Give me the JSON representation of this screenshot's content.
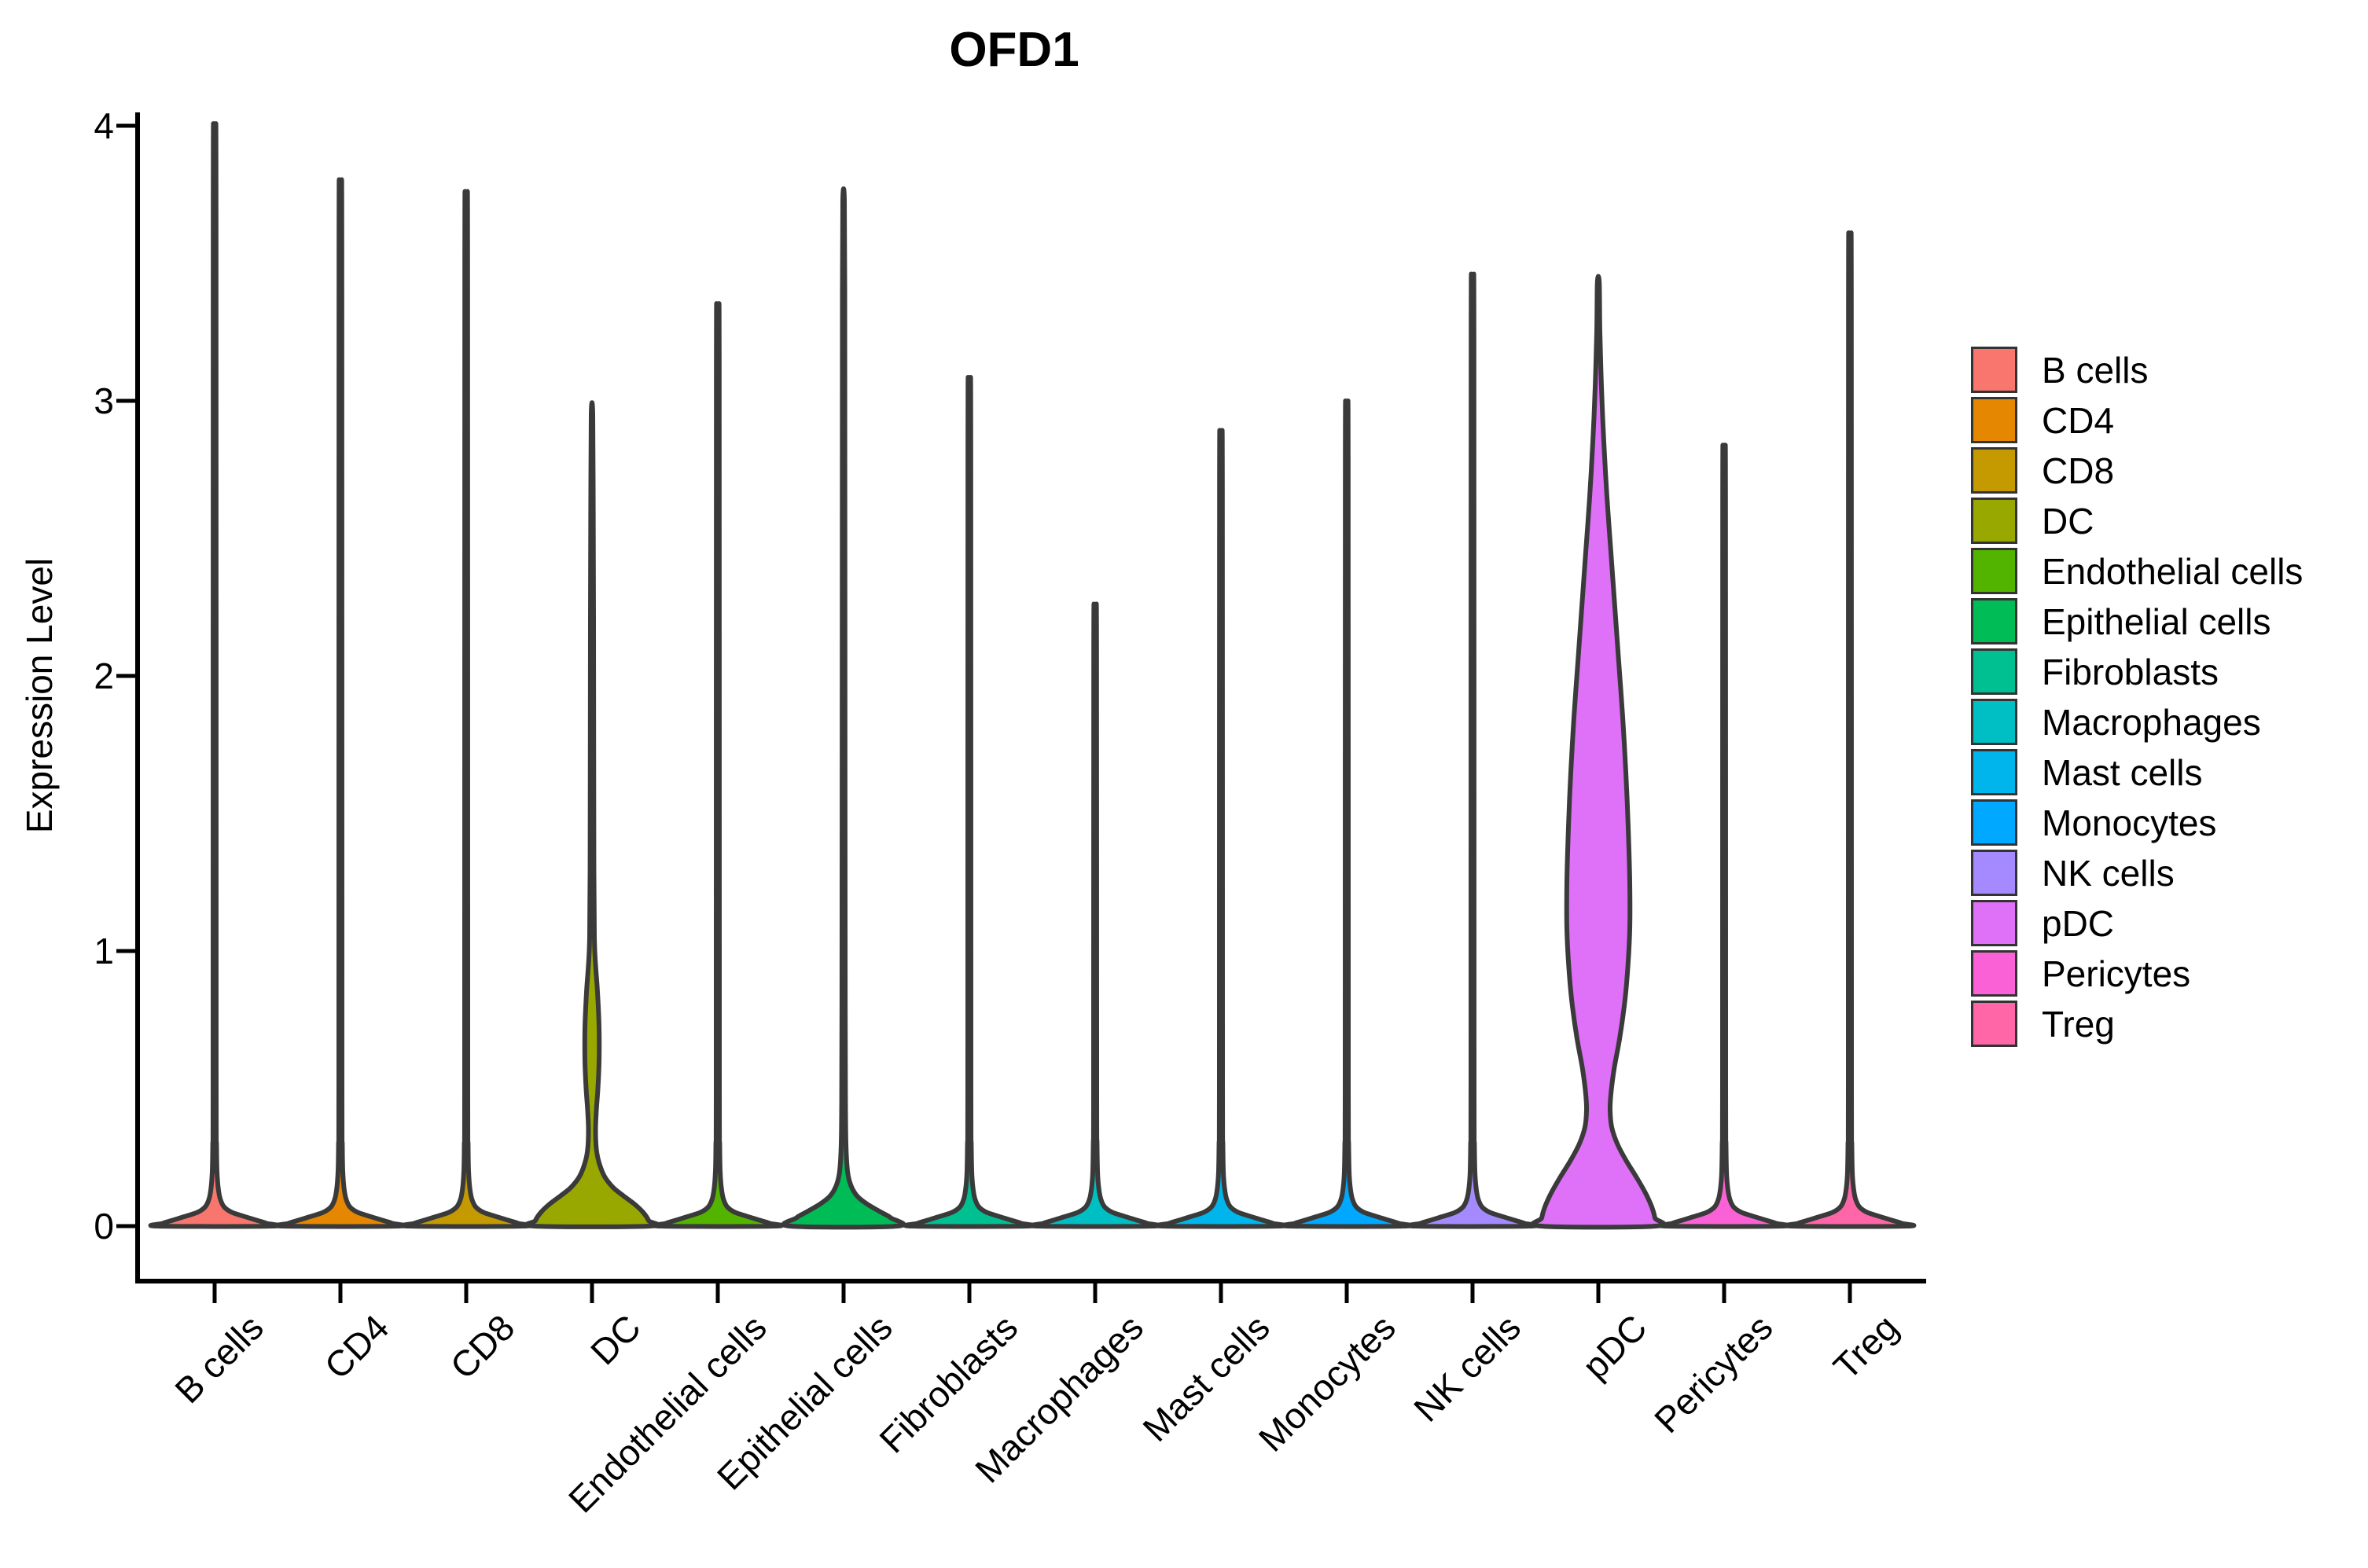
{
  "chart_data": {
    "type": "violin",
    "title": "OFD1",
    "ylabel": "Expression Level",
    "xlabel": "",
    "ylim": [
      0,
      4
    ],
    "yticks": [
      "0",
      "1",
      "2",
      "3",
      "4"
    ],
    "grid": false,
    "legend_position": "right",
    "categories": [
      "B cells",
      "CD4",
      "CD8",
      "DC",
      "Endothelial cells",
      "Epithelial cells",
      "Fibroblasts",
      "Macrophages",
      "Mast cells",
      "Monocytes",
      "NK cells",
      "pDC",
      "Pericytes",
      "Treg"
    ],
    "violins": [
      {
        "label": "B cells",
        "color": "#F8766D",
        "max_expression": 3.85,
        "profile": [
          [
            3.85,
            1
          ],
          [
            3.73,
            1.8
          ],
          [
            0.5,
            2
          ],
          [
            0.3,
            2.4
          ],
          [
            0.2,
            3
          ],
          [
            0.14,
            4.5
          ],
          [
            0.1,
            7
          ],
          [
            0.07,
            12
          ],
          [
            0.05,
            22
          ],
          [
            0.035,
            38
          ],
          [
            0.02,
            55
          ],
          [
            0.01,
            66
          ],
          [
            0,
            72
          ]
        ]
      },
      {
        "label": "CD4",
        "color": "#E58700",
        "max_expression": 3.66,
        "profile": [
          [
            3.66,
            1
          ],
          [
            3.54,
            1.8
          ],
          [
            0.5,
            2
          ],
          [
            0.3,
            2.4
          ],
          [
            0.2,
            3
          ],
          [
            0.14,
            4.5
          ],
          [
            0.1,
            7
          ],
          [
            0.07,
            12
          ],
          [
            0.05,
            22
          ],
          [
            0.035,
            38
          ],
          [
            0.02,
            55
          ],
          [
            0.01,
            66
          ],
          [
            0,
            72
          ]
        ]
      },
      {
        "label": "CD8",
        "color": "#C49A00",
        "max_expression": 3.62,
        "profile": [
          [
            3.62,
            1
          ],
          [
            3.5,
            1.8
          ],
          [
            0.5,
            2
          ],
          [
            0.3,
            2.4
          ],
          [
            0.2,
            3
          ],
          [
            0.14,
            4.5
          ],
          [
            0.1,
            7
          ],
          [
            0.07,
            12
          ],
          [
            0.05,
            22
          ],
          [
            0.035,
            38
          ],
          [
            0.02,
            55
          ],
          [
            0.01,
            66
          ],
          [
            0,
            72
          ]
        ]
      },
      {
        "label": "DC",
        "color": "#99A800",
        "max_expression": 2.95,
        "profile": [
          [
            2.95,
            1
          ],
          [
            2.6,
            1.6
          ],
          [
            2.2,
            2
          ],
          [
            1.7,
            2.2
          ],
          [
            1.3,
            2.4
          ],
          [
            1.05,
            3
          ],
          [
            0.95,
            4.5
          ],
          [
            0.85,
            7
          ],
          [
            0.72,
            9
          ],
          [
            0.6,
            9
          ],
          [
            0.5,
            7.5
          ],
          [
            0.42,
            5.5
          ],
          [
            0.35,
            4.5
          ],
          [
            0.28,
            5.5
          ],
          [
            0.23,
            9
          ],
          [
            0.18,
            16
          ],
          [
            0.14,
            27
          ],
          [
            0.11,
            40
          ],
          [
            0.08,
            54
          ],
          [
            0.05,
            65
          ],
          [
            0.02,
            72
          ],
          [
            0,
            73
          ]
        ]
      },
      {
        "label": "Endothelial cells",
        "color": "#53B400",
        "max_expression": 3.24,
        "profile": [
          [
            3.24,
            1
          ],
          [
            3.12,
            1.8
          ],
          [
            0.5,
            2
          ],
          [
            0.3,
            2.4
          ],
          [
            0.2,
            3
          ],
          [
            0.14,
            4.5
          ],
          [
            0.1,
            7
          ],
          [
            0.07,
            12
          ],
          [
            0.05,
            22
          ],
          [
            0.035,
            38
          ],
          [
            0.02,
            55
          ],
          [
            0.01,
            66
          ],
          [
            0,
            72
          ]
        ]
      },
      {
        "label": "Epithelial cells",
        "color": "#00BC57",
        "max_expression": 3.73,
        "profile": [
          [
            3.73,
            1
          ],
          [
            3.4,
            1.5
          ],
          [
            2.5,
            1.7
          ],
          [
            1.5,
            1.9
          ],
          [
            0.8,
            2.1
          ],
          [
            0.45,
            2.4
          ],
          [
            0.3,
            3
          ],
          [
            0.2,
            5
          ],
          [
            0.15,
            9
          ],
          [
            0.11,
            17
          ],
          [
            0.08,
            30
          ],
          [
            0.05,
            48
          ],
          [
            0.03,
            60
          ],
          [
            0,
            68
          ]
        ]
      },
      {
        "label": "Fibroblasts",
        "color": "#00C092",
        "max_expression": 2.99,
        "profile": [
          [
            2.99,
            1
          ],
          [
            2.87,
            1.8
          ],
          [
            0.5,
            2
          ],
          [
            0.3,
            2.4
          ],
          [
            0.2,
            3
          ],
          [
            0.14,
            4.5
          ],
          [
            0.1,
            7
          ],
          [
            0.07,
            12
          ],
          [
            0.05,
            22
          ],
          [
            0.035,
            38
          ],
          [
            0.02,
            55
          ],
          [
            0.01,
            66
          ],
          [
            0,
            72
          ]
        ]
      },
      {
        "label": "Macrophages",
        "color": "#00BFC4",
        "max_expression": 2.22,
        "profile": [
          [
            2.22,
            1
          ],
          [
            2.1,
            1.8
          ],
          [
            0.5,
            2
          ],
          [
            0.3,
            2.4
          ],
          [
            0.2,
            3
          ],
          [
            0.14,
            4.5
          ],
          [
            0.1,
            7
          ],
          [
            0.07,
            12
          ],
          [
            0.05,
            22
          ],
          [
            0.035,
            38
          ],
          [
            0.02,
            55
          ],
          [
            0.01,
            66
          ],
          [
            0,
            72
          ]
        ]
      },
      {
        "label": "Mast cells",
        "color": "#00B5EC",
        "max_expression": 2.81,
        "profile": [
          [
            2.81,
            1
          ],
          [
            2.69,
            1.8
          ],
          [
            0.5,
            2
          ],
          [
            0.3,
            2.4
          ],
          [
            0.2,
            3
          ],
          [
            0.14,
            4.5
          ],
          [
            0.1,
            7
          ],
          [
            0.07,
            12
          ],
          [
            0.05,
            22
          ],
          [
            0.035,
            38
          ],
          [
            0.02,
            55
          ],
          [
            0.01,
            66
          ],
          [
            0,
            72
          ]
        ]
      },
      {
        "label": "Monocytes",
        "color": "#00A9FF",
        "max_expression": 2.91,
        "profile": [
          [
            2.91,
            1
          ],
          [
            2.79,
            1.8
          ],
          [
            0.5,
            2
          ],
          [
            0.3,
            2.4
          ],
          [
            0.2,
            3
          ],
          [
            0.14,
            4.5
          ],
          [
            0.1,
            7
          ],
          [
            0.07,
            12
          ],
          [
            0.05,
            22
          ],
          [
            0.035,
            38
          ],
          [
            0.02,
            55
          ],
          [
            0.01,
            66
          ],
          [
            0,
            72
          ]
        ]
      },
      {
        "label": "NK cells",
        "color": "#A58AFF",
        "max_expression": 3.34,
        "profile": [
          [
            3.34,
            1
          ],
          [
            3.22,
            1.8
          ],
          [
            0.5,
            2
          ],
          [
            0.3,
            2.4
          ],
          [
            0.2,
            3
          ],
          [
            0.14,
            4.5
          ],
          [
            0.1,
            7
          ],
          [
            0.07,
            12
          ],
          [
            0.05,
            22
          ],
          [
            0.035,
            38
          ],
          [
            0.02,
            55
          ],
          [
            0.01,
            66
          ],
          [
            0,
            72
          ]
        ]
      },
      {
        "label": "pDC",
        "color": "#DF70F8",
        "max_expression": 3.43,
        "profile": [
          [
            3.43,
            1.2
          ],
          [
            3.25,
            2
          ],
          [
            3.05,
            4
          ],
          [
            2.85,
            7
          ],
          [
            2.65,
            11
          ],
          [
            2.45,
            16
          ],
          [
            2.25,
            21
          ],
          [
            2.05,
            26
          ],
          [
            1.85,
            31
          ],
          [
            1.65,
            35
          ],
          [
            1.45,
            38
          ],
          [
            1.25,
            40
          ],
          [
            1.08,
            40
          ],
          [
            0.92,
            37
          ],
          [
            0.8,
            33
          ],
          [
            0.68,
            27
          ],
          [
            0.57,
            20
          ],
          [
            0.48,
            16
          ],
          [
            0.42,
            15
          ],
          [
            0.36,
            17
          ],
          [
            0.3,
            24
          ],
          [
            0.24,
            35
          ],
          [
            0.18,
            48
          ],
          [
            0.12,
            60
          ],
          [
            0.07,
            68
          ],
          [
            0.03,
            72
          ],
          [
            0,
            73
          ]
        ]
      },
      {
        "label": "Pericytes",
        "color": "#FB61D7",
        "max_expression": 2.76,
        "profile": [
          [
            2.76,
            1
          ],
          [
            2.64,
            1.8
          ],
          [
            0.5,
            2
          ],
          [
            0.3,
            2.4
          ],
          [
            0.2,
            3
          ],
          [
            0.14,
            4.5
          ],
          [
            0.1,
            7
          ],
          [
            0.07,
            12
          ],
          [
            0.05,
            22
          ],
          [
            0.035,
            38
          ],
          [
            0.02,
            55
          ],
          [
            0.01,
            66
          ],
          [
            0,
            72
          ]
        ]
      },
      {
        "label": "Treg",
        "color": "#FF66A8",
        "max_expression": 3.48,
        "profile": [
          [
            3.48,
            1
          ],
          [
            3.36,
            1.8
          ],
          [
            0.5,
            2
          ],
          [
            0.3,
            2.4
          ],
          [
            0.2,
            3
          ],
          [
            0.14,
            4.5
          ],
          [
            0.1,
            7
          ],
          [
            0.07,
            12
          ],
          [
            0.05,
            22
          ],
          [
            0.035,
            38
          ],
          [
            0.02,
            55
          ],
          [
            0.01,
            66
          ],
          [
            0,
            72
          ]
        ]
      }
    ],
    "outline_color": "#3A3A3A",
    "axis_color": "#000000"
  },
  "legend": {
    "items": [
      {
        "label": "B cells",
        "color": "#F8766D"
      },
      {
        "label": "CD4",
        "color": "#E58700"
      },
      {
        "label": "CD8",
        "color": "#C49A00"
      },
      {
        "label": "DC",
        "color": "#99A800"
      },
      {
        "label": "Endothelial cells",
        "color": "#53B400"
      },
      {
        "label": "Epithelial cells",
        "color": "#00BC57"
      },
      {
        "label": "Fibroblasts",
        "color": "#00C092"
      },
      {
        "label": "Macrophages",
        "color": "#00BFC4"
      },
      {
        "label": "Mast cells",
        "color": "#00B5EC"
      },
      {
        "label": "Monocytes",
        "color": "#00A9FF"
      },
      {
        "label": "NK cells",
        "color": "#A58AFF"
      },
      {
        "label": "pDC",
        "color": "#DF70F8"
      },
      {
        "label": "Pericytes",
        "color": "#FB61D7"
      },
      {
        "label": "Treg",
        "color": "#FF66A8"
      }
    ]
  }
}
